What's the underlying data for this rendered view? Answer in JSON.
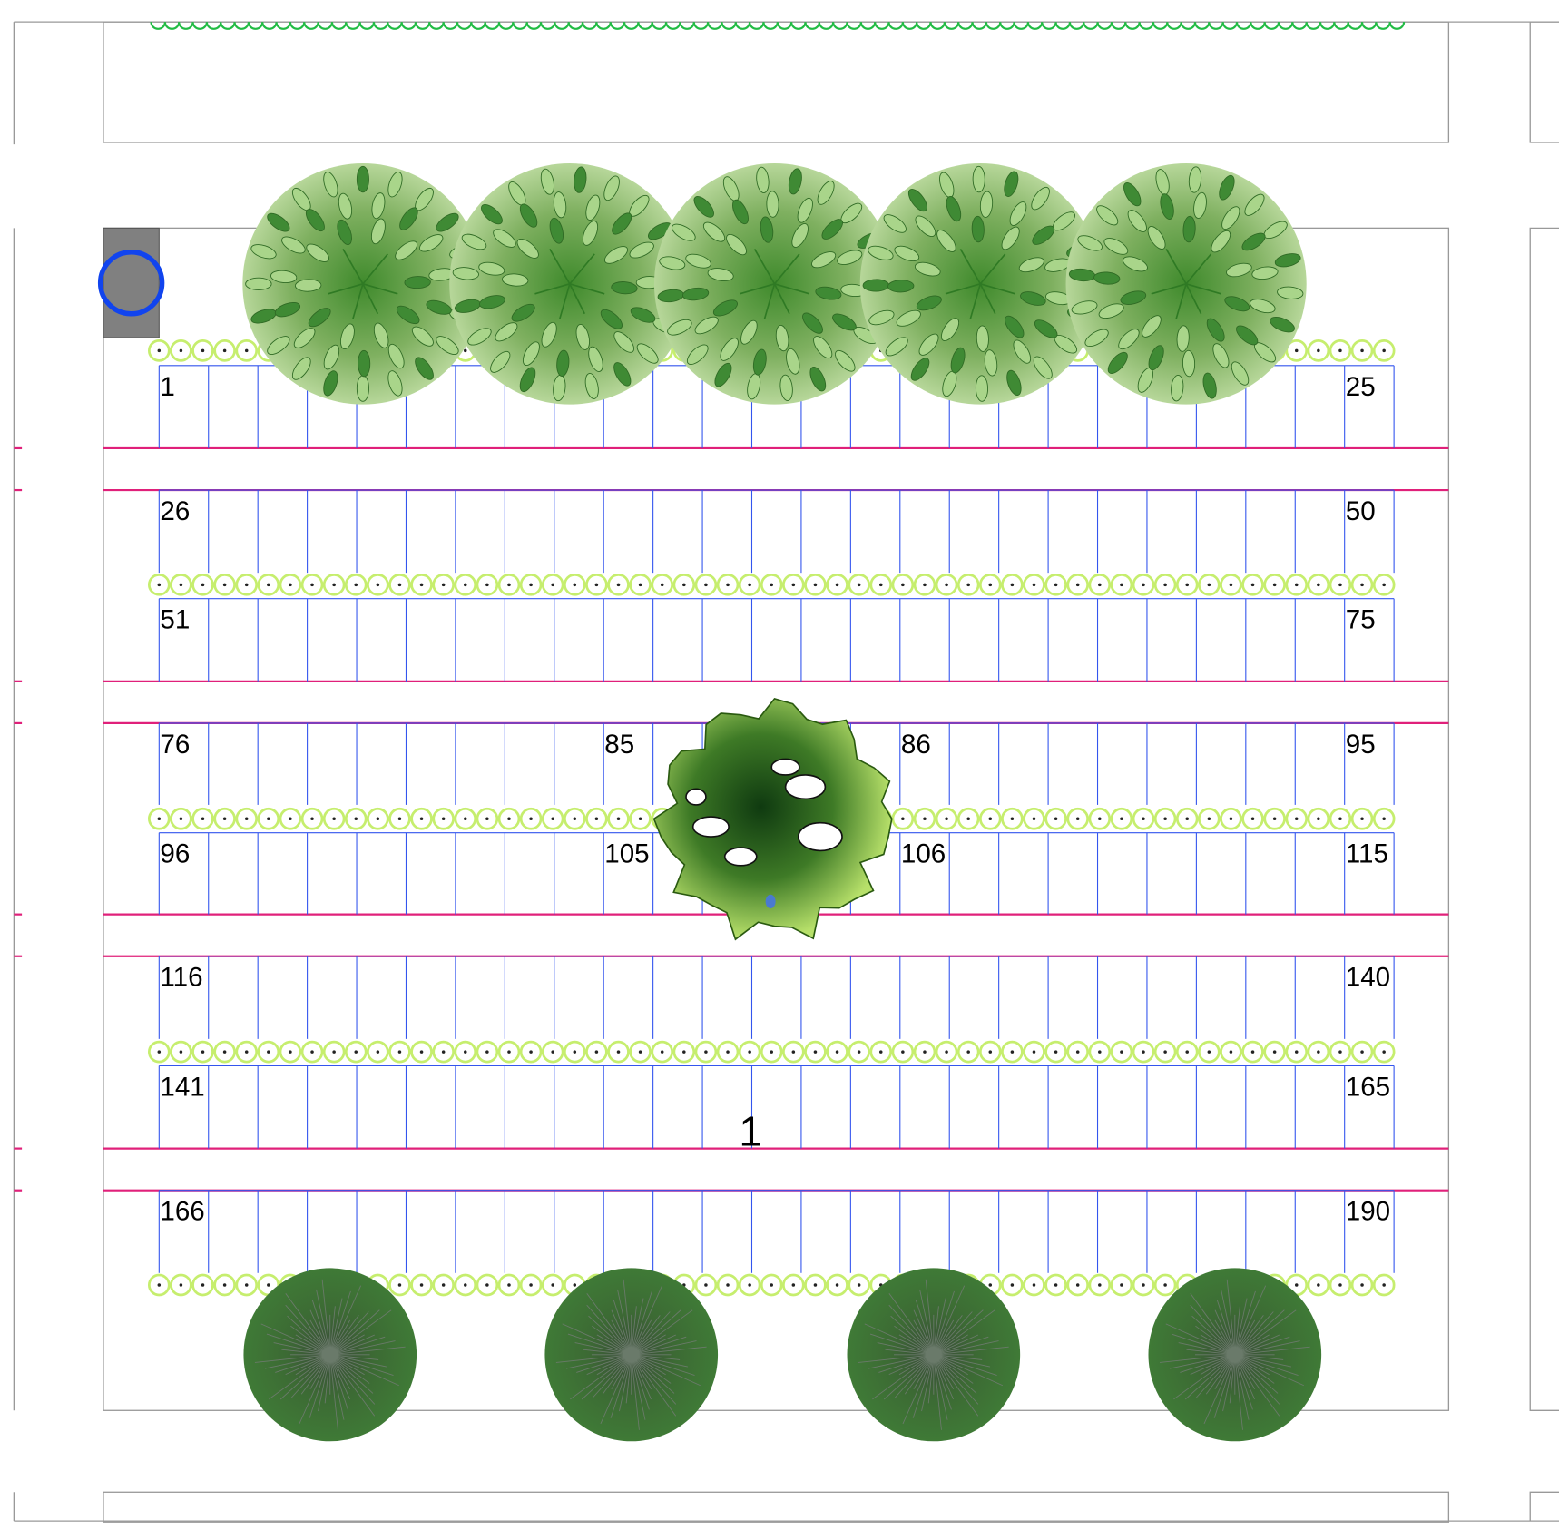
{
  "stall_rows": [
    [
      "1",
      "25"
    ],
    [
      "26",
      "50"
    ],
    [
      "51",
      "75"
    ],
    [
      "76",
      "85",
      "86",
      "95"
    ],
    [
      "96",
      "105",
      "106",
      "115"
    ],
    [
      "116",
      "140"
    ],
    [
      "141",
      "165"
    ],
    [
      "166",
      "190"
    ]
  ],
  "lot_number": "1"
}
